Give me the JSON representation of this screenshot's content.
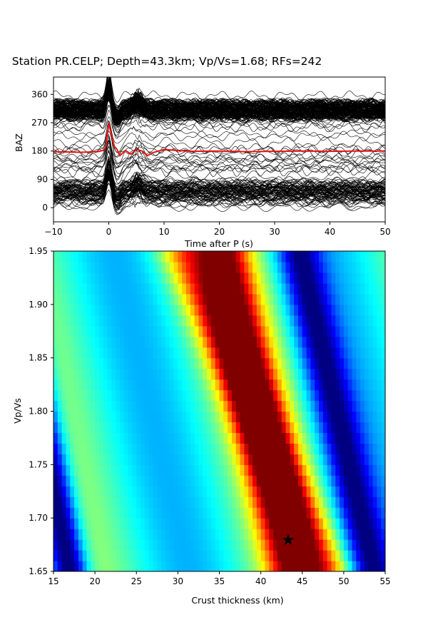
{
  "chart_data": [
    {
      "type": "line",
      "title": "Station PR.CELP; Depth=43.3km; Vp/Vs=1.68; RFs=242",
      "xlabel": "Time after P (s)",
      "ylabel": "BAZ",
      "xlim": [
        -10,
        50
      ],
      "ylim": [
        -45,
        415
      ],
      "xticks": [
        -10,
        0,
        10,
        20,
        30,
        40,
        50
      ],
      "yticks": [
        0,
        90,
        180,
        270,
        360
      ],
      "colors": {
        "traces": "#000000",
        "stack": "#e8140f"
      },
      "n_traces": 242,
      "series": [
        {
          "x": [
            -10,
            -5,
            -2,
            -1,
            -0.5,
            0,
            0.5,
            1,
            1.5,
            2,
            3,
            4,
            5,
            6,
            7,
            8,
            9,
            10,
            12,
            15,
            20,
            25,
            30,
            35,
            40,
            45,
            50
          ],
          "values": [
            178,
            176,
            178,
            182,
            195,
            268,
            230,
            195,
            185,
            165,
            182,
            170,
            185,
            180,
            165,
            175,
            180,
            185,
            182,
            179,
            180,
            178,
            179,
            180,
            179,
            180,
            180
          ]
        }
      ]
    },
    {
      "type": "heatmap",
      "xlabel": "Crust thickness (km)",
      "ylabel": "Vp/Vs",
      "xlim": [
        15,
        55
      ],
      "ylim": [
        1.65,
        1.95
      ],
      "xticks": [
        15,
        20,
        25,
        30,
        35,
        40,
        45,
        50,
        55
      ],
      "yticks": [
        1.65,
        1.7,
        1.75,
        1.8,
        1.85,
        1.9,
        1.95
      ],
      "colormap": "jet",
      "best_fit": {
        "H": 43.3,
        "vpvs": 1.68
      }
    }
  ]
}
